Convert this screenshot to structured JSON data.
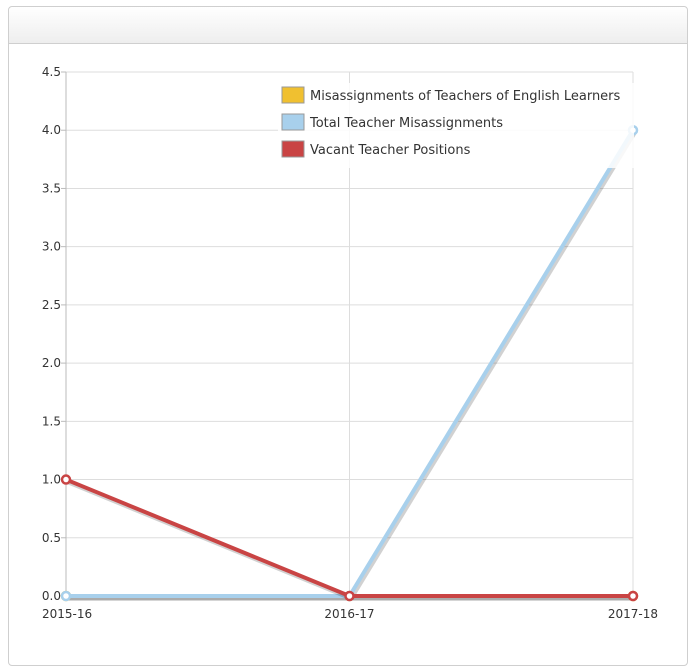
{
  "chart_data": {
    "type": "line",
    "title": "",
    "xlabel": "",
    "ylabel": "",
    "categories": [
      "2015-16",
      "2016-17",
      "2017-18"
    ],
    "ylim": [
      0,
      4.5
    ],
    "yticks": [
      "0.0",
      "0.5",
      "1.0",
      "1.5",
      "2.0",
      "2.5",
      "3.0",
      "3.5",
      "4.0",
      "4.5"
    ],
    "grid": true,
    "legend_position": "top-right",
    "series": [
      {
        "name": "Misassignments of Teachers of English Learners",
        "color": "#f0c030",
        "values": [
          0,
          0,
          0
        ]
      },
      {
        "name": "Total Teacher Misassignments",
        "color": "#a8d0ec",
        "values": [
          0,
          0,
          4
        ]
      },
      {
        "name": "Vacant Teacher Positions",
        "color": "#c94444",
        "values": [
          1,
          0,
          0
        ]
      }
    ]
  }
}
